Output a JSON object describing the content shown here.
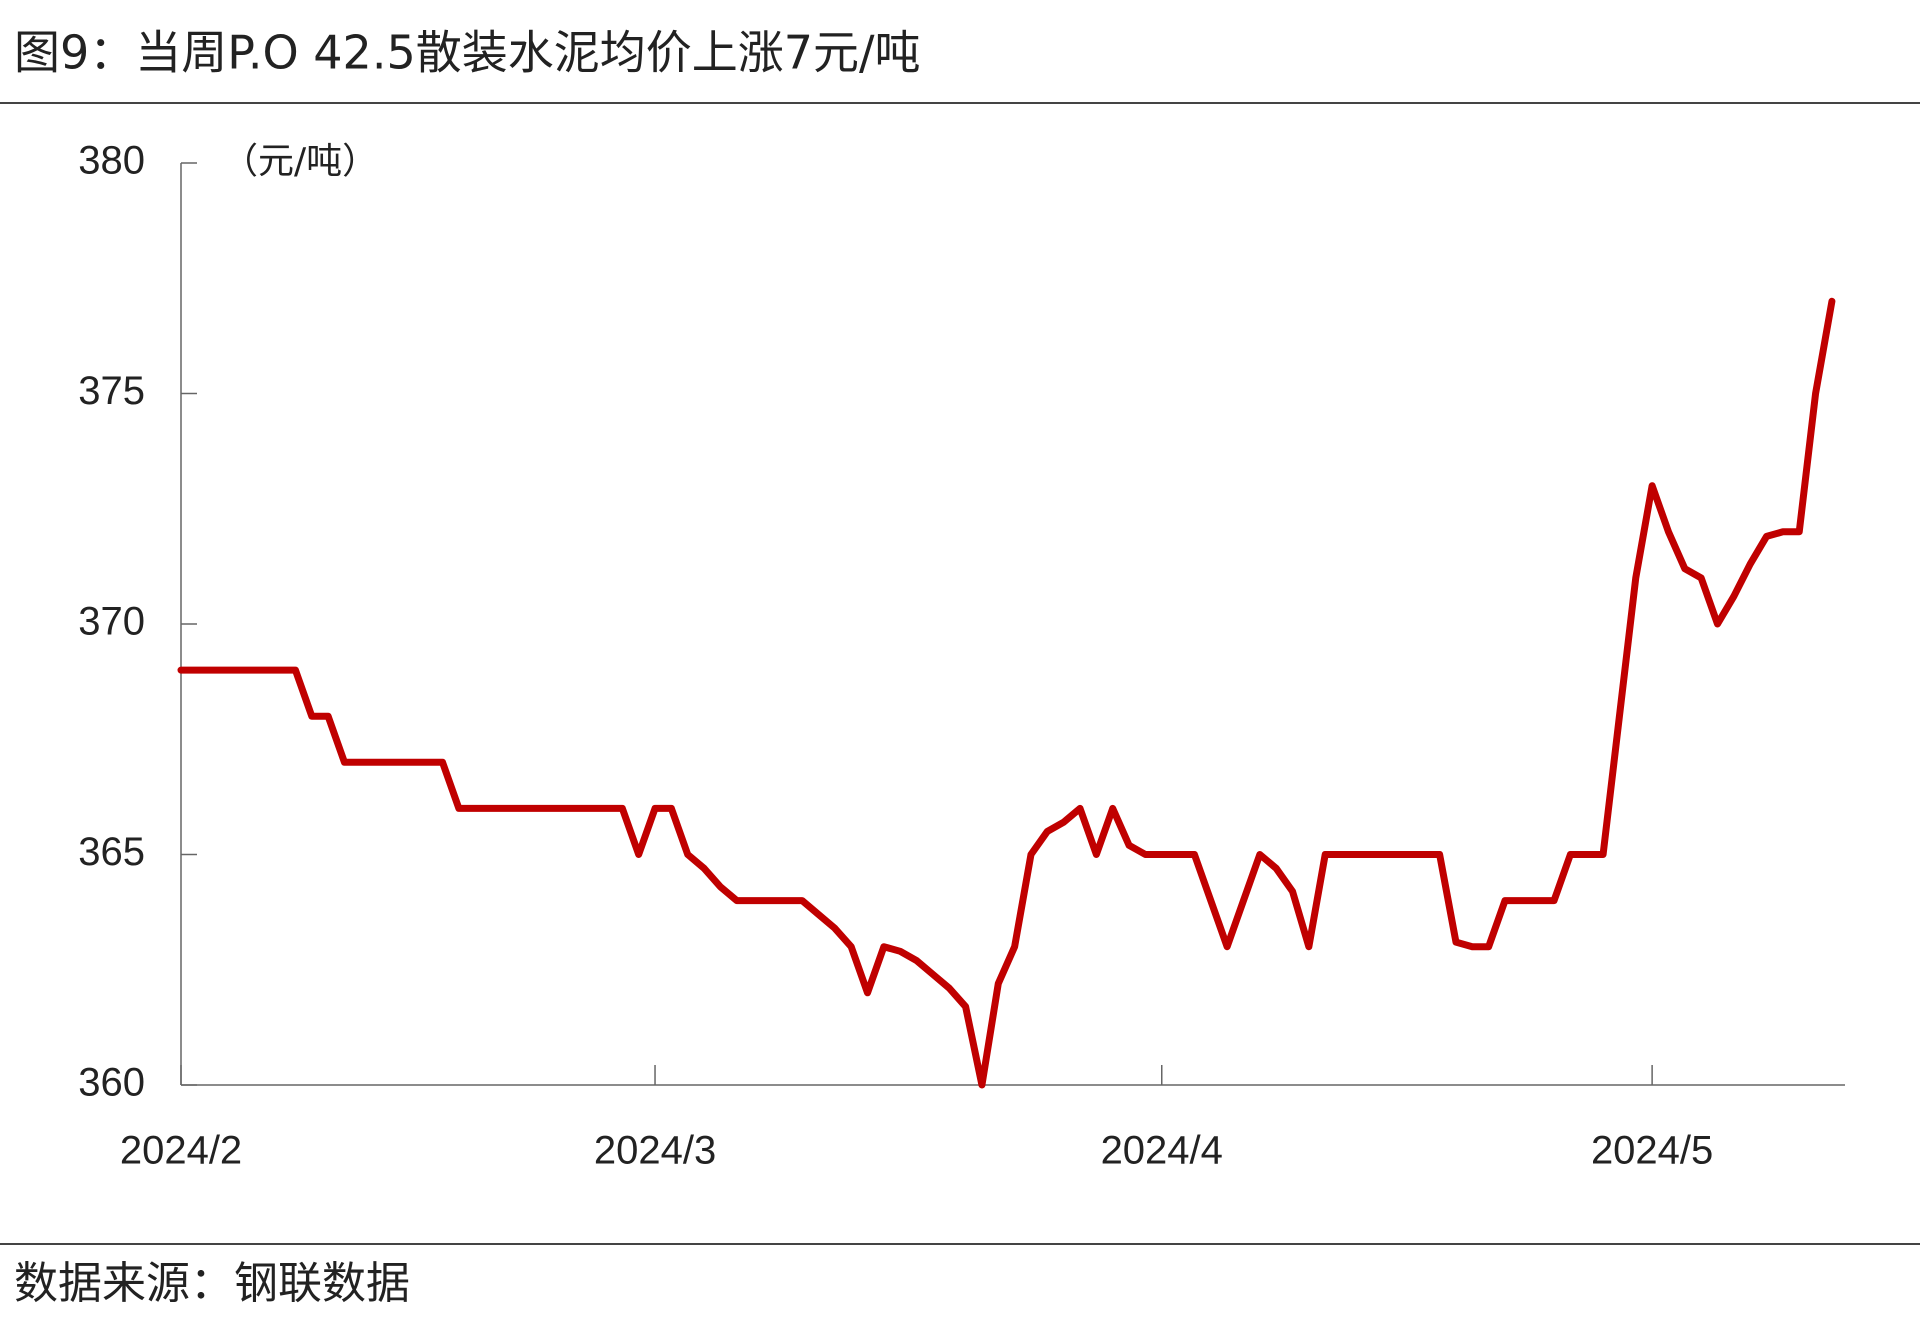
{
  "chart_data": {
    "type": "line",
    "title": "图9：当周P.O 42.5散装水泥均价上涨7元/吨",
    "y_label": "（元/吨）",
    "source": "数据来源：钢联数据",
    "categories": [
      "2024/2",
      null,
      null,
      null,
      null,
      null,
      null,
      null,
      null,
      null,
      null,
      null,
      null,
      null,
      null,
      null,
      null,
      null,
      null,
      null,
      null,
      null,
      null,
      null,
      null,
      null,
      null,
      null,
      null,
      "2024/3",
      null,
      null,
      null,
      null,
      null,
      null,
      null,
      null,
      null,
      null,
      null,
      null,
      null,
      null,
      null,
      null,
      null,
      null,
      null,
      null,
      null,
      null,
      null,
      null,
      null,
      null,
      null,
      null,
      null,
      null,
      "2024/4",
      null,
      null,
      null,
      null,
      null,
      null,
      null,
      null,
      null,
      null,
      null,
      null,
      null,
      null,
      null,
      null,
      null,
      null,
      null,
      null,
      null,
      null,
      null,
      null,
      null,
      null,
      null,
      null,
      null,
      "2024/5",
      null,
      null,
      null,
      null,
      null,
      null,
      null,
      null,
      null,
      null,
      null
    ],
    "series": [
      {
        "name": "P.O 42.5散装水泥均价",
        "color": "#c00000",
        "values": [
          369,
          369,
          369,
          369,
          369,
          369,
          369,
          369,
          368,
          368,
          367,
          367,
          367,
          367,
          367,
          367,
          367,
          366,
          366,
          366,
          366,
          366,
          366,
          366,
          366,
          366,
          366,
          366,
          365,
          366,
          366,
          365,
          364.7,
          364.3,
          364,
          364,
          364,
          364,
          364,
          363.7,
          363.4,
          363,
          362,
          363,
          362.9,
          362.7,
          362.4,
          362.1,
          361.7,
          360,
          362.2,
          363,
          365,
          365.5,
          365.7,
          366,
          365,
          366,
          365.2,
          365,
          365,
          365,
          365,
          364,
          363,
          364,
          365,
          364.7,
          364.2,
          363,
          365,
          365,
          365,
          365,
          365,
          365,
          365,
          365,
          363.1,
          363,
          363,
          364,
          364,
          364,
          364,
          365,
          365,
          365,
          368,
          371,
          373,
          372,
          371.2,
          371,
          370,
          370.6,
          371.3,
          371.9,
          372,
          372,
          375,
          377
        ]
      }
    ],
    "ylim": [
      360,
      380
    ],
    "yticks": [
      360,
      365,
      370,
      375,
      380
    ],
    "grid": false
  }
}
